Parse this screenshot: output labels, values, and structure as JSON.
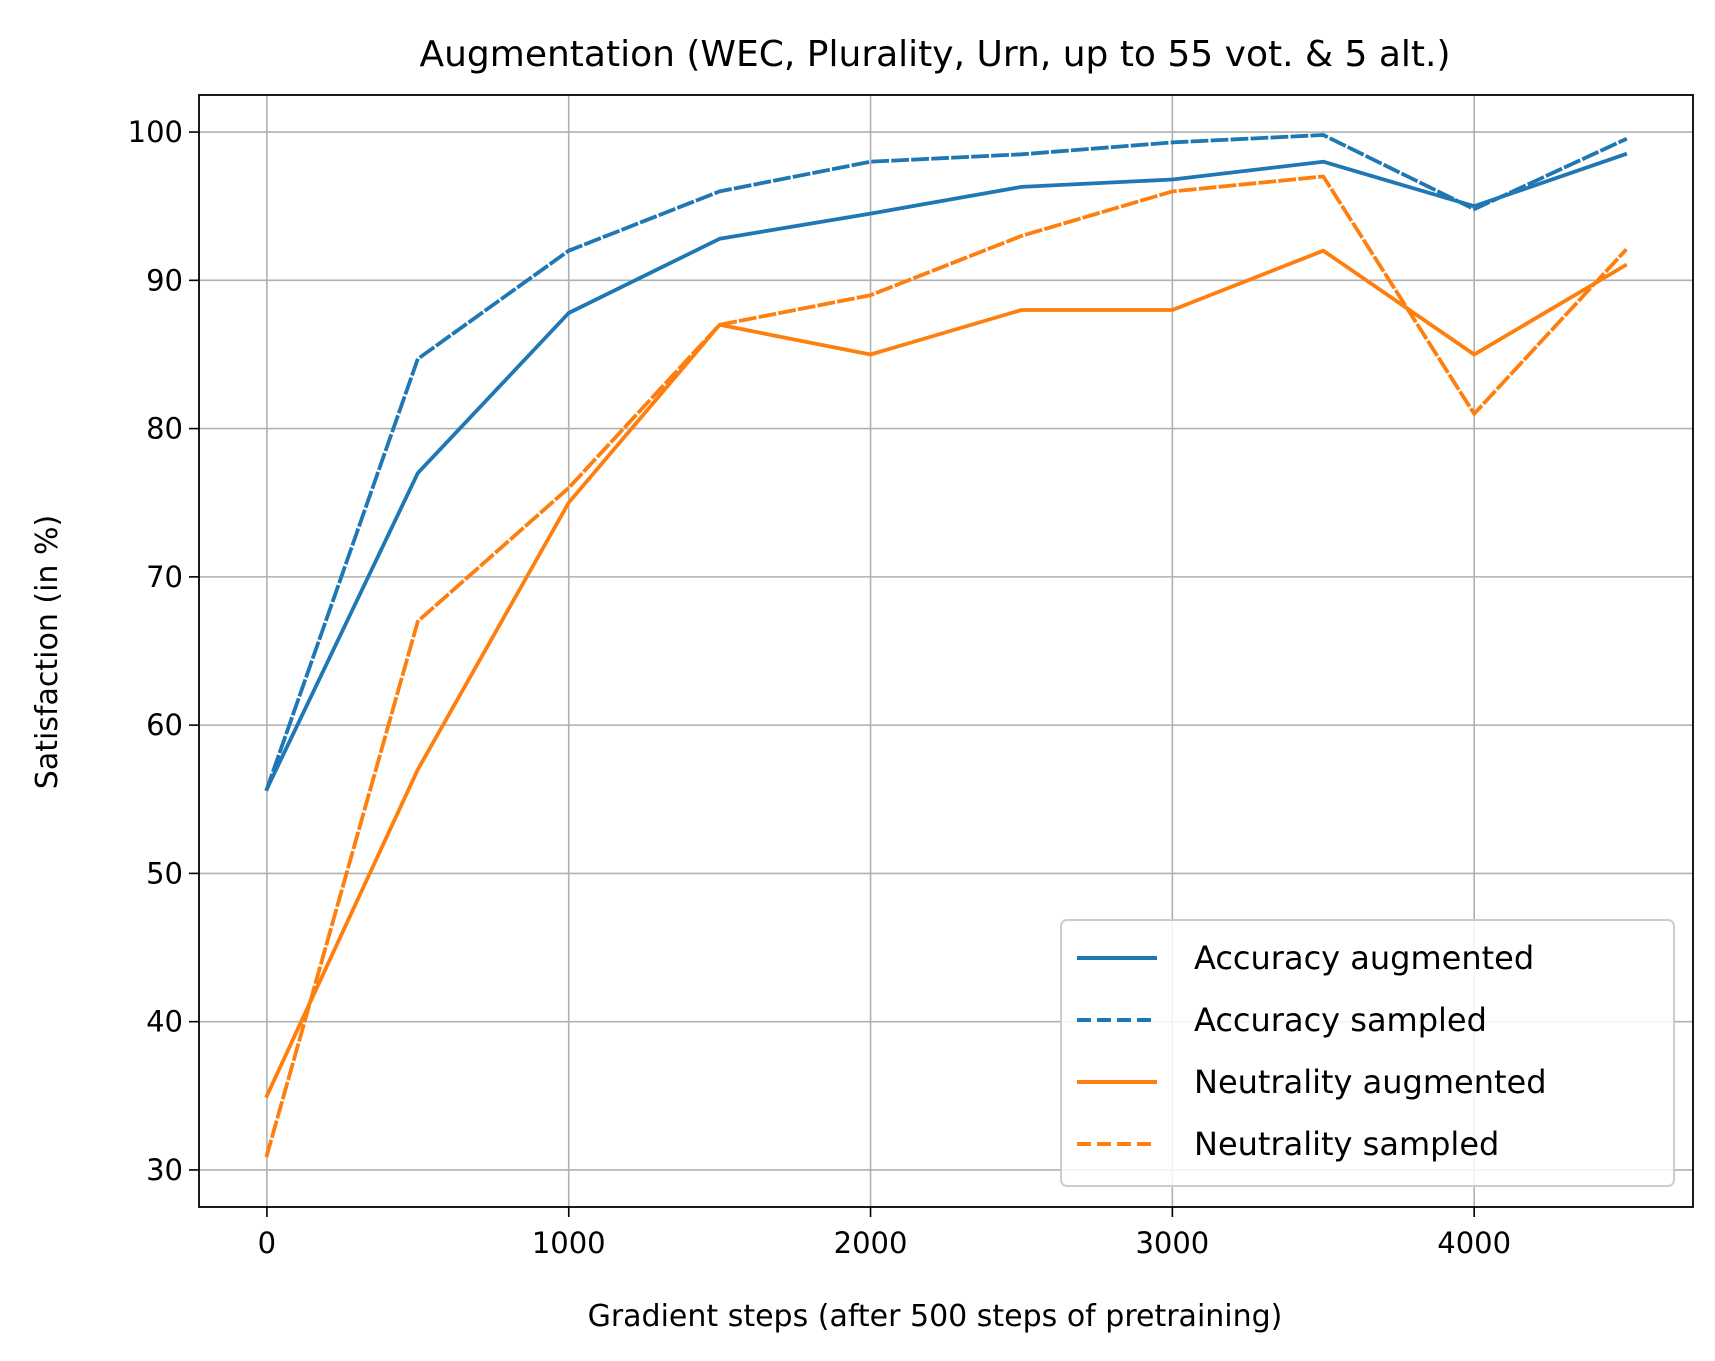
{
  "chart_data": {
    "type": "line",
    "title": "Augmentation (WEC, Plurality, Urn, up to 55 vot. & 5 alt.)",
    "xlabel": "Gradient steps (after 500 steps of pretraining)",
    "ylabel": "Satisfaction (in %)",
    "xlim": [
      -225,
      4725
    ],
    "ylim": [
      27.5,
      102.5
    ],
    "xticks": [
      0,
      1000,
      2000,
      3000,
      4000
    ],
    "yticks": [
      30,
      40,
      50,
      60,
      70,
      80,
      90,
      100
    ],
    "xtick_labels": [
      "0",
      "1000",
      "2000",
      "3000",
      "4000"
    ],
    "ytick_labels": [
      "30",
      "40",
      "50",
      "60",
      "70",
      "80",
      "90",
      "100"
    ],
    "grid": true,
    "legend_position": "bottom-right",
    "x": [
      0,
      500,
      1000,
      1500,
      2000,
      2500,
      3000,
      3500,
      4000,
      4500
    ],
    "series": [
      {
        "name": "Accuracy augmented",
        "color": "#1f77b4",
        "dash": "solid",
        "values": [
          55.7,
          77.0,
          87.8,
          92.8,
          94.5,
          96.3,
          96.8,
          98.0,
          95.0,
          98.5
        ]
      },
      {
        "name": "Accuracy sampled",
        "color": "#1f77b4",
        "dash": "dashed",
        "values": [
          55.7,
          84.7,
          92.0,
          96.0,
          98.0,
          98.5,
          99.3,
          99.8,
          94.8,
          99.5
        ]
      },
      {
        "name": "Neutrality augmented",
        "color": "#ff7f0e",
        "dash": "solid",
        "values": [
          35.0,
          57.0,
          75.0,
          87.0,
          85.0,
          88.0,
          88.0,
          92.0,
          85.0,
          91.0
        ]
      },
      {
        "name": "Neutrality sampled",
        "color": "#ff7f0e",
        "dash": "dashed",
        "values": [
          31.0,
          67.0,
          76.0,
          87.0,
          89.0,
          93.0,
          96.0,
          97.0,
          81.0,
          92.0
        ]
      }
    ]
  }
}
